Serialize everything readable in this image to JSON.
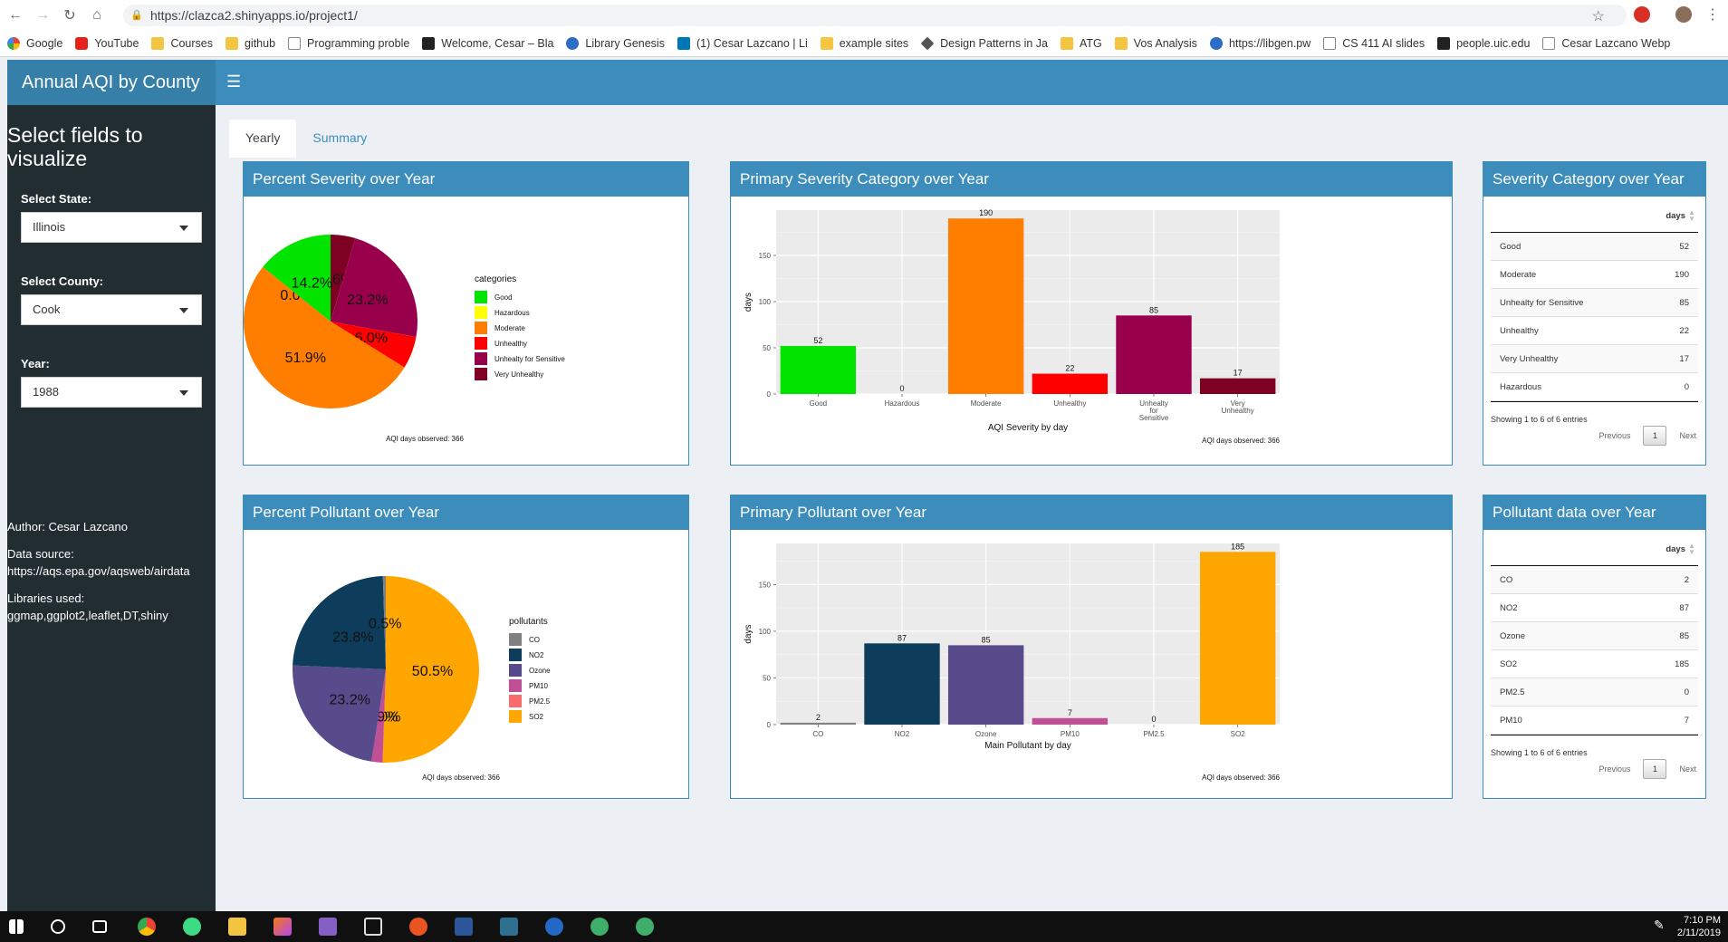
{
  "browser": {
    "url": "https://clazca2.shinyapps.io/project1/",
    "bookmarks": [
      {
        "label": "Google",
        "icon": "google-icon"
      },
      {
        "label": "YouTube",
        "icon": "youtube-icon"
      },
      {
        "label": "Courses",
        "icon": "folder-icon"
      },
      {
        "label": "github",
        "icon": "folder-icon"
      },
      {
        "label": "Programming proble",
        "icon": "page-icon"
      },
      {
        "label": "Welcome, Cesar – Bla",
        "icon": "bb-icon"
      },
      {
        "label": "Library Genesis",
        "icon": "libgen-icon"
      },
      {
        "label": "(1) Cesar Lazcano | Li",
        "icon": "linkedin-icon"
      },
      {
        "label": "example sites",
        "icon": "folder-icon"
      },
      {
        "label": "Design Patterns in Ja",
        "icon": "diamond-icon"
      },
      {
        "label": "ATG",
        "icon": "folder-icon"
      },
      {
        "label": "Vos Analysis",
        "icon": "folder-icon"
      },
      {
        "label": "https://libgen.pw",
        "icon": "globe-icon"
      },
      {
        "label": "CS 411 AI slides",
        "icon": "page-icon"
      },
      {
        "label": "people.uic.edu",
        "icon": "uic-icon"
      },
      {
        "label": "Cesar Lazcano Webp",
        "icon": "page-icon"
      }
    ]
  },
  "app": {
    "title": "Annual AQI by County",
    "sidebar": {
      "heading": "Select fields to visualize",
      "state_label": "Select State:",
      "state_value": "Illinois",
      "county_label": "Select County:",
      "county_value": "Cook",
      "year_label": "Year:",
      "year_value": "1988",
      "author": "Author: Cesar Lazcano",
      "source_label": "Data source:",
      "source_url": "https://aqs.epa.gov/aqsweb/airdata",
      "libs_label": "Libraries used:",
      "libs": "ggmap,ggplot2,leaflet,DT,shiny"
    },
    "tabs": [
      "Yearly",
      "Summary"
    ],
    "boxes": {
      "pct_severity": "Percent Severity over Year",
      "primary_severity": "Primary Severity Category over Year",
      "severity_table": "Severity Category over Year",
      "pct_pollutant": "Percent Pollutant over Year",
      "primary_pollutant": "Primary Pollutant over Year",
      "pollutant_table": "Pollutant data over Year"
    },
    "caption": "AQI days observed:  366",
    "severity_table": {
      "header": "days",
      "rows": [
        {
          "k": "Good",
          "v": "52"
        },
        {
          "k": "Moderate",
          "v": "190"
        },
        {
          "k": "Unhealty for Sensitive",
          "v": "85"
        },
        {
          "k": "Unhealthy",
          "v": "22"
        },
        {
          "k": "Very Unhealthy",
          "v": "17"
        },
        {
          "k": "Hazardous",
          "v": "0"
        }
      ],
      "info": "Showing 1 to 6 of 6 entries",
      "prev": "Previous",
      "page": "1",
      "next": "Next"
    },
    "pollutant_table": {
      "header": "days",
      "rows": [
        {
          "k": "CO",
          "v": "2"
        },
        {
          "k": "NO2",
          "v": "87"
        },
        {
          "k": "Ozone",
          "v": "85"
        },
        {
          "k": "SO2",
          "v": "185"
        },
        {
          "k": "PM2.5",
          "v": "0"
        },
        {
          "k": "PM10",
          "v": "7"
        }
      ],
      "info": "Showing 1 to 6 of 6 entries",
      "prev": "Previous",
      "page": "1",
      "next": "Next"
    }
  },
  "taskbar": {
    "time": "7:10 PM",
    "date": "2/11/2019"
  },
  "chart_data": [
    {
      "type": "pie",
      "legend_title": "categories",
      "legend": [
        "Good",
        "Hazardous",
        "Moderate",
        "Unhealthy",
        "Unhealty for Sensitive",
        "Very Unhealthy"
      ],
      "slices": [
        {
          "name": "Good",
          "value": 14.2,
          "label": "14.2%",
          "color": "#00e400"
        },
        {
          "name": "Hazardous",
          "value": 0.0,
          "label": "0.0%",
          "color": "#ffff00"
        },
        {
          "name": "Moderate",
          "value": 51.9,
          "label": "51.9%",
          "color": "#ff7e00"
        },
        {
          "name": "Unhealthy",
          "value": 6.0,
          "label": "6.0%",
          "color": "#ff0000"
        },
        {
          "name": "Unhealty for Sensitive",
          "value": 23.2,
          "label": "23.2%",
          "color": "#99004c"
        },
        {
          "name": "Very Unhealthy",
          "value": 4.6,
          "label": "4.6%",
          "color": "#7e0023"
        }
      ]
    },
    {
      "type": "bar",
      "categories": [
        "Good",
        "Hazardous",
        "Moderate",
        "Unhealthy",
        "Unhealty for Sensitive",
        "Very Unhealthy"
      ],
      "values": [
        52,
        0,
        190,
        22,
        85,
        17
      ],
      "colors": [
        "#00e400",
        "#ffff00",
        "#ff7e00",
        "#ff0000",
        "#99004c",
        "#7e0023"
      ],
      "xlabel": "AQI Severity by day",
      "ylabel": "days",
      "yticks": [
        0,
        50,
        100,
        150
      ],
      "ylim": [
        0,
        199
      ]
    },
    {
      "type": "pie",
      "legend_title": "pollutants",
      "legend": [
        "CO",
        "NO2",
        "Ozone",
        "PM10",
        "PM2.5",
        "SO2"
      ],
      "slices": [
        {
          "name": "CO",
          "value": 0.5,
          "label": "0.5%",
          "color": "#808080"
        },
        {
          "name": "NO2",
          "value": 23.8,
          "label": "23.8%",
          "color": "#0e3d5c"
        },
        {
          "name": "Ozone",
          "value": 23.2,
          "label": "23.2%",
          "color": "#574b8c"
        },
        {
          "name": "PM10",
          "value": 1.9,
          "label": "1.9%",
          "color": "#c04f95"
        },
        {
          "name": "PM2.5",
          "value": 0.0,
          "label": "0.0%",
          "color": "#fa6b6b"
        },
        {
          "name": "SO2",
          "value": 50.5,
          "label": "50.5%",
          "color": "#ffa600"
        }
      ]
    },
    {
      "type": "bar",
      "categories": [
        "CO",
        "NO2",
        "Ozone",
        "PM10",
        "PM2.5",
        "SO2"
      ],
      "values": [
        2,
        87,
        85,
        7,
        0,
        185
      ],
      "colors": [
        "#808080",
        "#0e3d5c",
        "#574b8c",
        "#c04f95",
        "#fa6b6b",
        "#ffa600"
      ],
      "xlabel": "Main Pollutant by day",
      "ylabel": "days",
      "yticks": [
        0,
        50,
        100,
        150
      ],
      "ylim": [
        0,
        194
      ]
    }
  ]
}
